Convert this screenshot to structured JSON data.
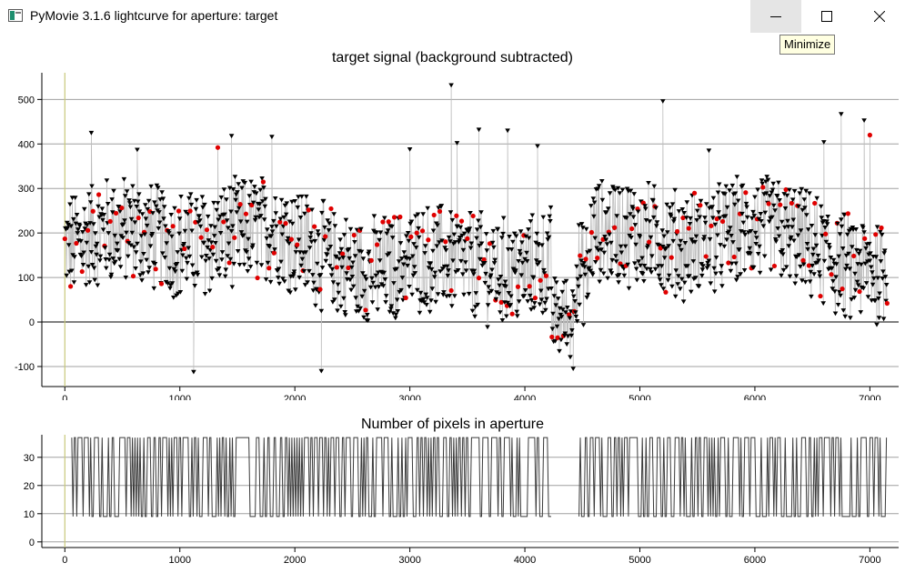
{
  "window": {
    "title": "PyMovie 3.1.6 lightcurve for aperture: target",
    "app_icon": "app-window-icon",
    "buttons": [
      {
        "name": "minimize",
        "icon": "minimize-icon"
      },
      {
        "name": "maximize",
        "icon": "maximize-icon"
      },
      {
        "name": "close",
        "icon": "close-icon"
      }
    ],
    "tooltip": "Minimize"
  },
  "chart_data": [
    {
      "type": "scatter",
      "title": "target signal (background subtracted)",
      "xlabel": "",
      "ylabel": "",
      "xlim": [
        -200,
        7250
      ],
      "ylim": [
        -145,
        560
      ],
      "xticks": [
        0,
        1000,
        2000,
        3000,
        4000,
        5000,
        6000,
        7000
      ],
      "yticks": [
        -100,
        0,
        100,
        200,
        300,
        400,
        500
      ],
      "grid": "horizontal",
      "zero_line": 0,
      "series": [
        {
          "marker": "triangle-down",
          "color": "#000000",
          "x_range": [
            0,
            7150
          ],
          "y_typical": [
            20,
            300
          ],
          "dip": {
            "x_range": [
              4230,
              4420
            ],
            "y_range": [
              -105,
              130
            ]
          }
        },
        {
          "marker": "circle",
          "color": "#e00000",
          "subset": "every 10th frame"
        }
      ],
      "outliers": [
        {
          "x": 230,
          "y": 425
        },
        {
          "x": 630,
          "y": 387
        },
        {
          "x": 1330,
          "y": 392
        },
        {
          "x": 1450,
          "y": 418
        },
        {
          "x": 1800,
          "y": 416
        },
        {
          "x": 3000,
          "y": 388
        },
        {
          "x": 3360,
          "y": 532
        },
        {
          "x": 3410,
          "y": 402
        },
        {
          "x": 3600,
          "y": 432
        },
        {
          "x": 3850,
          "y": 430
        },
        {
          "x": 4110,
          "y": 395
        },
        {
          "x": 5200,
          "y": 496
        },
        {
          "x": 5600,
          "y": 385
        },
        {
          "x": 6600,
          "y": 404
        },
        {
          "x": 6750,
          "y": 467
        },
        {
          "x": 6950,
          "y": 453
        },
        {
          "x": 7000,
          "y": 420
        },
        {
          "x": 2230,
          "y": -110
        },
        {
          "x": 1120,
          "y": -112
        },
        {
          "x": 4420,
          "y": -105
        }
      ]
    },
    {
      "type": "line",
      "title": "Number of pixels in aperture",
      "xlabel": "",
      "ylabel": "",
      "xlim": [
        -200,
        7250
      ],
      "ylim": [
        -2,
        38
      ],
      "xticks": [
        0,
        1000,
        2000,
        3000,
        4000,
        5000,
        6000,
        7000
      ],
      "yticks": [
        0,
        10,
        20,
        30
      ],
      "grid": "horizontal",
      "levels": [
        9,
        37
      ],
      "gap_x_range": [
        4230,
        4460
      ],
      "x_range": [
        60,
        7150
      ]
    }
  ]
}
